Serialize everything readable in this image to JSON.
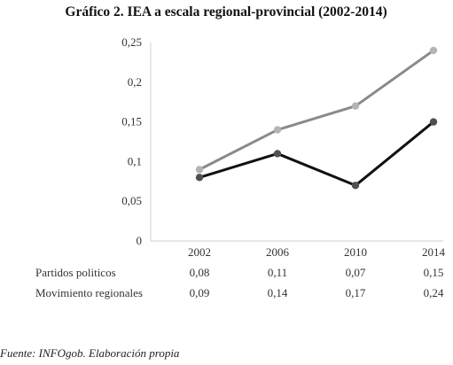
{
  "chart_data": {
    "type": "line",
    "title": "Gráfico 2. IEA a escala regional-provincial (2002-2014)",
    "categories": [
      "2002",
      "2006",
      "2010",
      "2014"
    ],
    "y_ticks": [
      "0",
      "0,05",
      "0,1",
      "0,15",
      "0,2",
      "0,25"
    ],
    "ylim": [
      0,
      0.25
    ],
    "grid": false,
    "series": [
      {
        "name": "Partidos políticos",
        "row_label": "Partidos politicos",
        "values": [
          0.08,
          0.11,
          0.07,
          0.15
        ],
        "labels": [
          "0,08",
          "0,11",
          "0,07",
          "0,15"
        ],
        "line_color": "#111111",
        "marker_color": "#505050"
      },
      {
        "name": "Movimientos regionales",
        "row_label": "Movimiento regionales",
        "values": [
          0.09,
          0.14,
          0.17,
          0.24
        ],
        "labels": [
          "0,09",
          "0,14",
          "0,17",
          "0,24"
        ],
        "line_color": "#8a8a8a",
        "marker_color": "#b4b4b4"
      }
    ],
    "source": "Fuente: INFOgob. Elaboración propia"
  }
}
